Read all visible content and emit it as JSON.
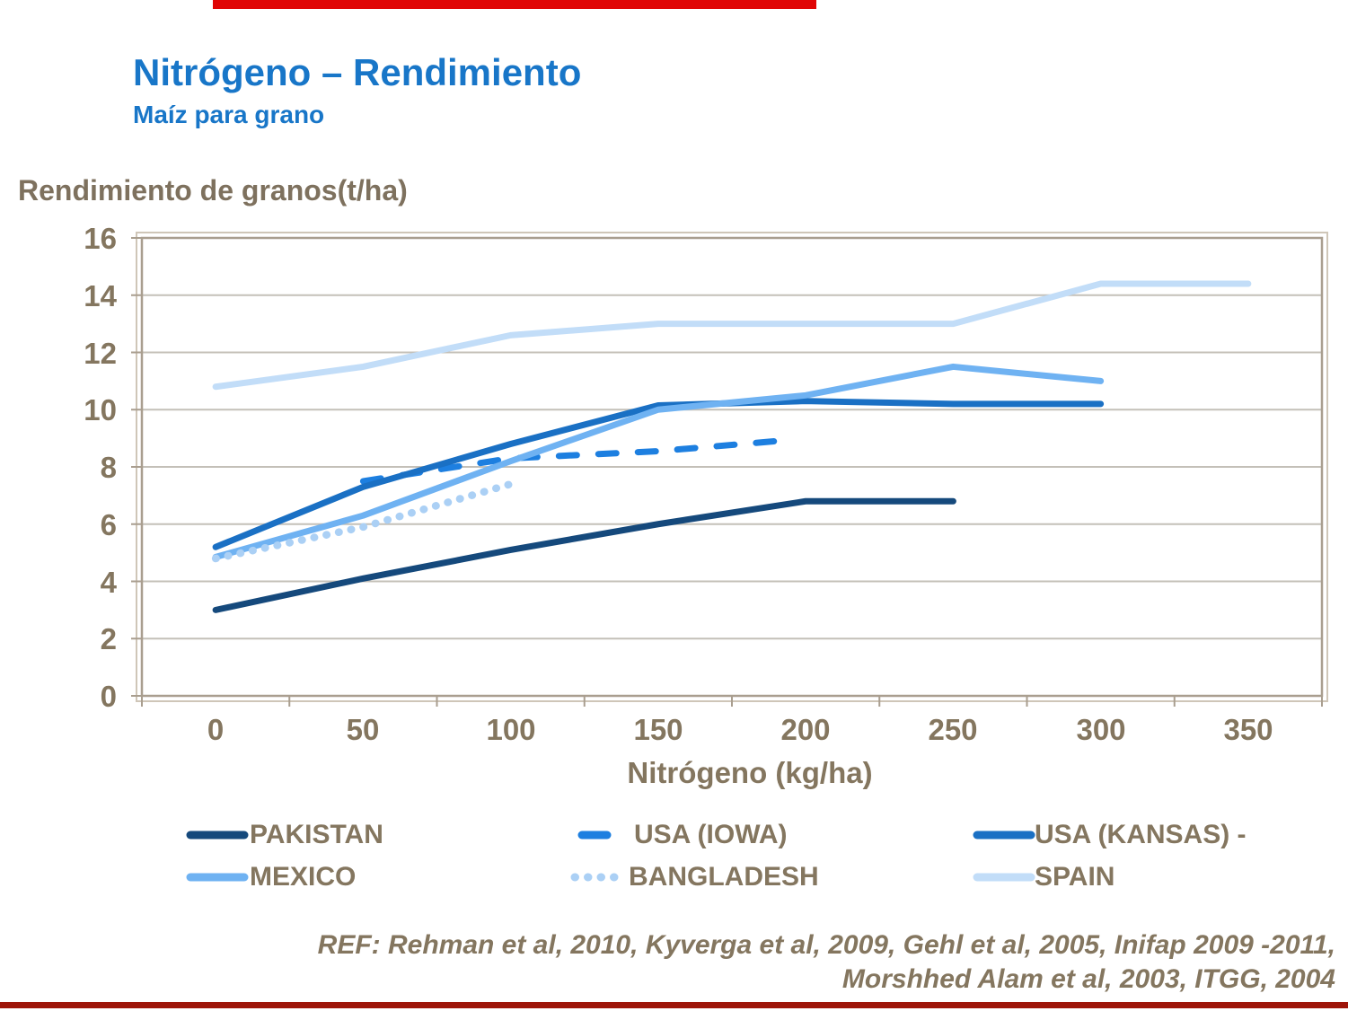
{
  "slide": {
    "title": "Nitrógeno – Rendimiento",
    "subtitle": "Maíz para grano",
    "accent_bar_top_color": "#E00505",
    "accent_bar_bottom_color": "#9E150A"
  },
  "chart_data": {
    "type": "line",
    "ylabel": "Rendimiento de granos(t/ha)",
    "xlabel": "Nitrógeno (kg/ha)",
    "x_ticks": [
      0,
      50,
      100,
      150,
      200,
      250,
      300,
      350
    ],
    "y_ticks": [
      16,
      14,
      12,
      10,
      8,
      6,
      4,
      2,
      0
    ],
    "ylim": [
      0,
      16
    ],
    "xlim": [
      0,
      350
    ],
    "grid": "horizontal",
    "legend_position": "bottom",
    "frame_color": "#A99E8F",
    "gridline_color": "#C4C0B8",
    "series": [
      {
        "name": "PAKISTAN",
        "color": "#15497C",
        "style": "solid",
        "x": [
          0,
          50,
          100,
          150,
          200,
          250
        ],
        "values": [
          3.0,
          4.1,
          5.1,
          6.0,
          6.8,
          6.8
        ]
      },
      {
        "name": "USA (IOWA)",
        "color": "#1D7FE0",
        "style": "dashed",
        "x": [
          50,
          100,
          150,
          190
        ],
        "values": [
          7.5,
          8.3,
          8.55,
          8.9
        ]
      },
      {
        "name": "USA (KANSAS) -",
        "color": "#1A70C4",
        "style": "solid",
        "x": [
          0,
          50,
          100,
          150,
          200,
          250,
          300
        ],
        "values": [
          5.2,
          7.3,
          8.8,
          10.15,
          10.3,
          10.2,
          10.2
        ]
      },
      {
        "name": "MEXICO",
        "color": "#6FB2F2",
        "style": "solid",
        "x": [
          0,
          50,
          100,
          150,
          200,
          250,
          300
        ],
        "values": [
          4.85,
          6.3,
          8.2,
          10.0,
          10.5,
          11.5,
          11.0
        ]
      },
      {
        "name": "BANGLADESH",
        "color": "#ABD0F5",
        "style": "dotted",
        "x": [
          0,
          50,
          100
        ],
        "values": [
          4.8,
          5.9,
          7.4
        ]
      },
      {
        "name": "SPAIN",
        "color": "#C2DDF8",
        "style": "solid",
        "x": [
          0,
          50,
          100,
          150,
          200,
          250,
          300,
          350
        ],
        "values": [
          10.8,
          11.5,
          12.6,
          13.0,
          13.0,
          13.0,
          14.4,
          14.4
        ]
      }
    ]
  },
  "footer": {
    "ref_line1": "REF: Rehman et al, 2010, Kyverga et al, 2009, Gehl et al, 2005, Inifap 2009 -2011,",
    "ref_line2": "Morshhed Alam et al, 2003, ITGG, 2004"
  }
}
